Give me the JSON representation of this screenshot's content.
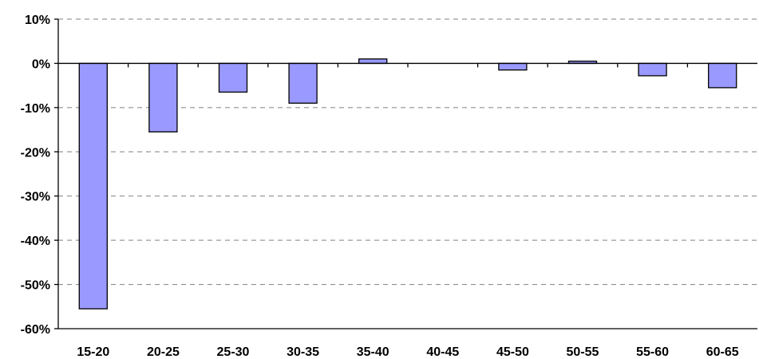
{
  "chart_data": {
    "type": "bar",
    "title": "",
    "xlabel": "",
    "ylabel": "",
    "categories": [
      "15-20",
      "20-25",
      "25-30",
      "30-35",
      "35-40",
      "40-45",
      "45-50",
      "50-55",
      "55-60",
      "60-65"
    ],
    "values": [
      -55.5,
      -15.5,
      -6.5,
      -9.0,
      1.0,
      0.0,
      -1.5,
      0.5,
      -2.8,
      -5.5
    ],
    "unit": "%",
    "ylim": [
      -60,
      10
    ],
    "yticks": [
      10,
      0,
      -10,
      -20,
      -30,
      -40,
      -50,
      -60
    ],
    "ytick_labels": [
      "10%",
      "0%",
      "-10%",
      "-20%",
      "-30%",
      "-40%",
      "-50%",
      "-60%"
    ],
    "grid": "horizontal dashed",
    "legend": "none",
    "bar_color": "#9999ff",
    "bar_edge_color": "#000000"
  }
}
